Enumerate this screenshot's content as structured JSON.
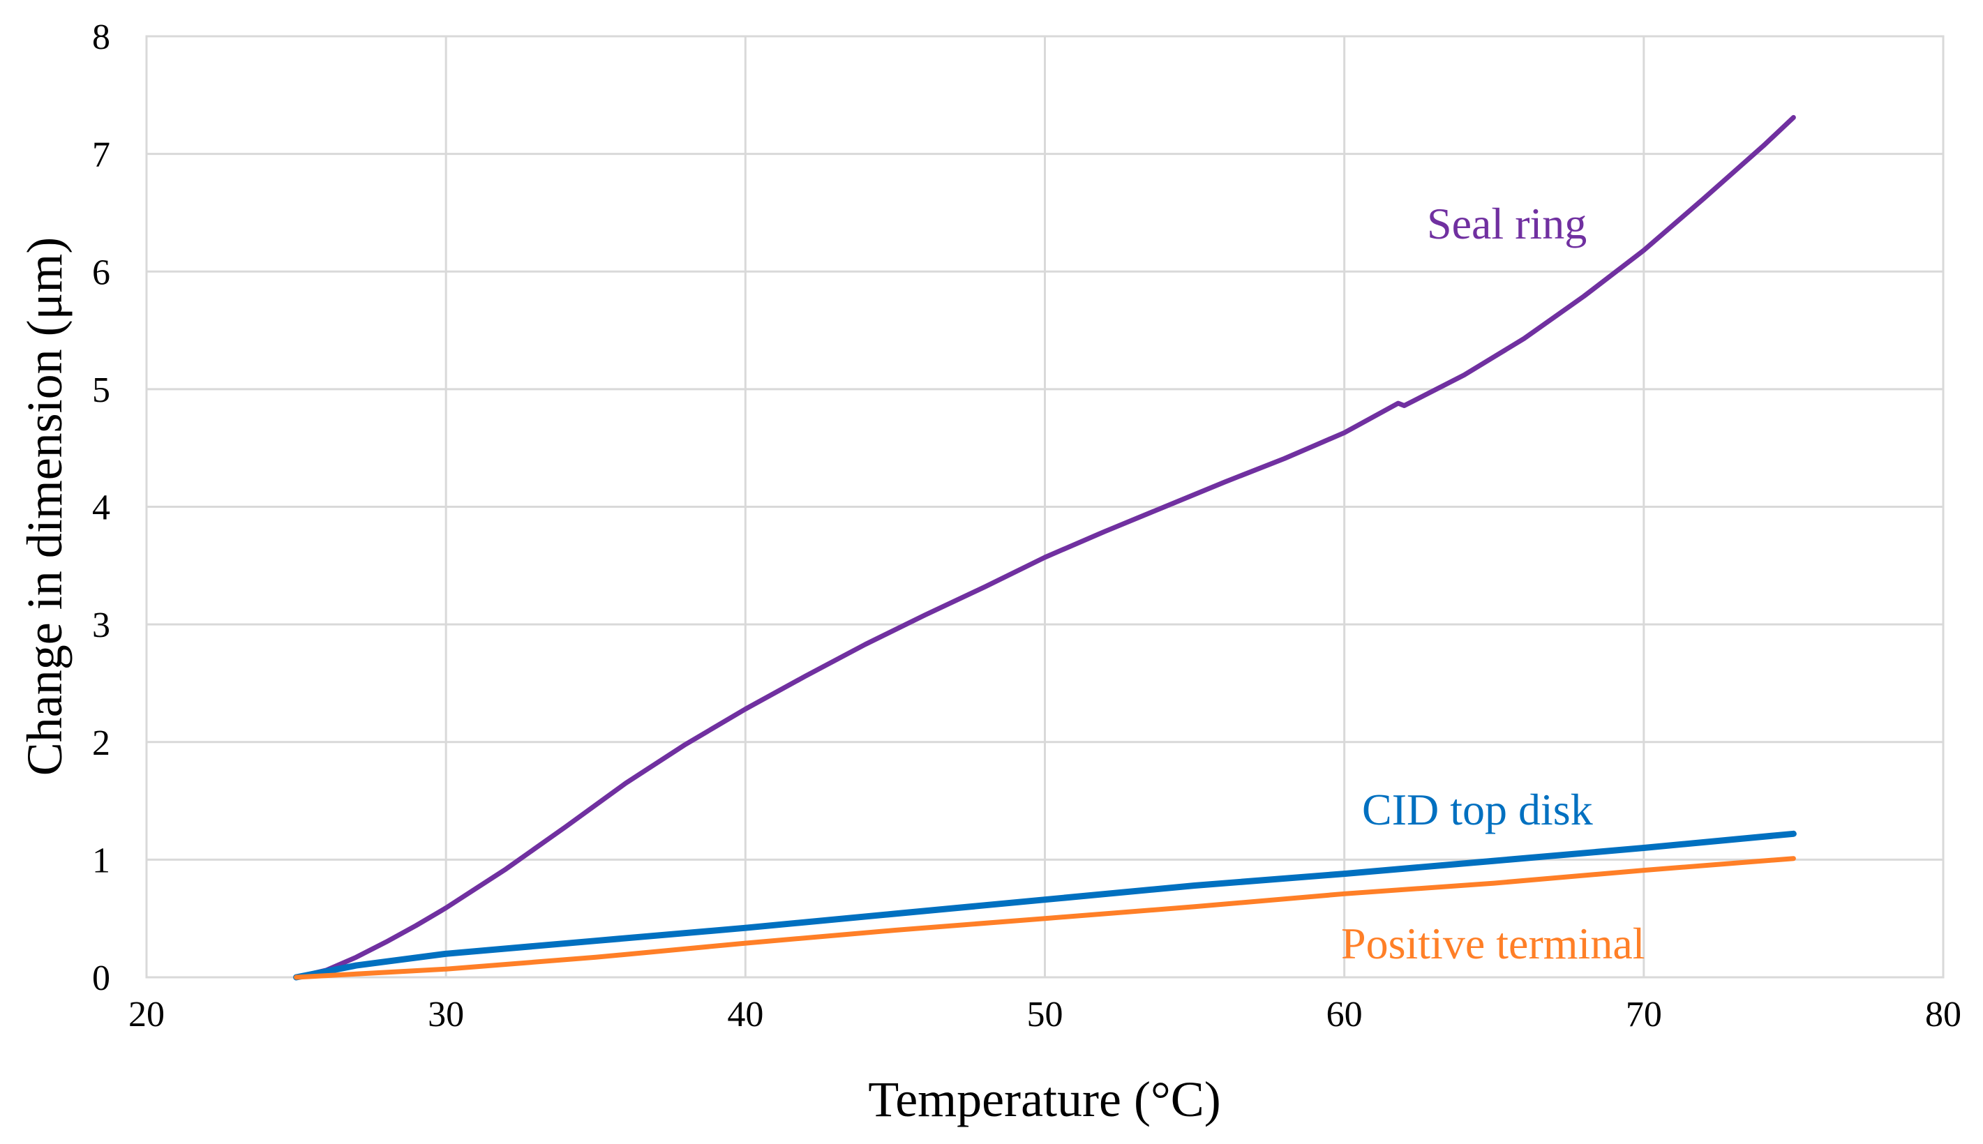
{
  "chart_data": {
    "type": "line",
    "title": "",
    "xlabel": "Temperature (°C)",
    "ylabel": "Change in dimension (μm)",
    "xlim": [
      20,
      80
    ],
    "ylim": [
      0,
      8
    ],
    "xticks": [
      20,
      30,
      40,
      50,
      60,
      70,
      80
    ],
    "yticks": [
      0,
      1,
      2,
      3,
      4,
      5,
      6,
      7,
      8
    ],
    "xtick_labels": [
      "20",
      "30",
      "40",
      "50",
      "60",
      "70",
      "80"
    ],
    "ytick_labels": [
      "0",
      "1",
      "2",
      "3",
      "4",
      "5",
      "6",
      "7",
      "8"
    ],
    "grid": true,
    "legend": "none (series labeled inline)",
    "series": [
      {
        "name": "Seal ring",
        "color": "#7030a0",
        "x": [
          25,
          26,
          27,
          28,
          29,
          30,
          32,
          34,
          36,
          38,
          40,
          42,
          44,
          46,
          48,
          50,
          52,
          54,
          56,
          58,
          60,
          61.8,
          62,
          64,
          66,
          68,
          70,
          72,
          74,
          75
        ],
        "values": [
          0,
          0.06,
          0.17,
          0.3,
          0.44,
          0.59,
          0.92,
          1.28,
          1.65,
          1.98,
          2.28,
          2.56,
          2.83,
          3.08,
          3.32,
          3.57,
          3.79,
          4.0,
          4.21,
          4.41,
          4.63,
          4.88,
          4.86,
          5.12,
          5.43,
          5.79,
          6.18,
          6.62,
          7.07,
          7.31
        ]
      },
      {
        "name": "CID top disk",
        "color": "#0070c0",
        "x": [
          25,
          27,
          30,
          35,
          40,
          45,
          50,
          55,
          60,
          65,
          70,
          75
        ],
        "values": [
          0,
          0.1,
          0.2,
          0.31,
          0.42,
          0.54,
          0.66,
          0.78,
          0.88,
          0.99,
          1.1,
          1.22
        ]
      },
      {
        "name": "Positive terminal",
        "color": "#ff7f27",
        "x": [
          25,
          30,
          35,
          40,
          45,
          50,
          55,
          60,
          65,
          70,
          75
        ],
        "values": [
          0,
          0.07,
          0.17,
          0.29,
          0.4,
          0.5,
          0.6,
          0.71,
          0.8,
          0.91,
          1.01
        ]
      }
    ]
  }
}
